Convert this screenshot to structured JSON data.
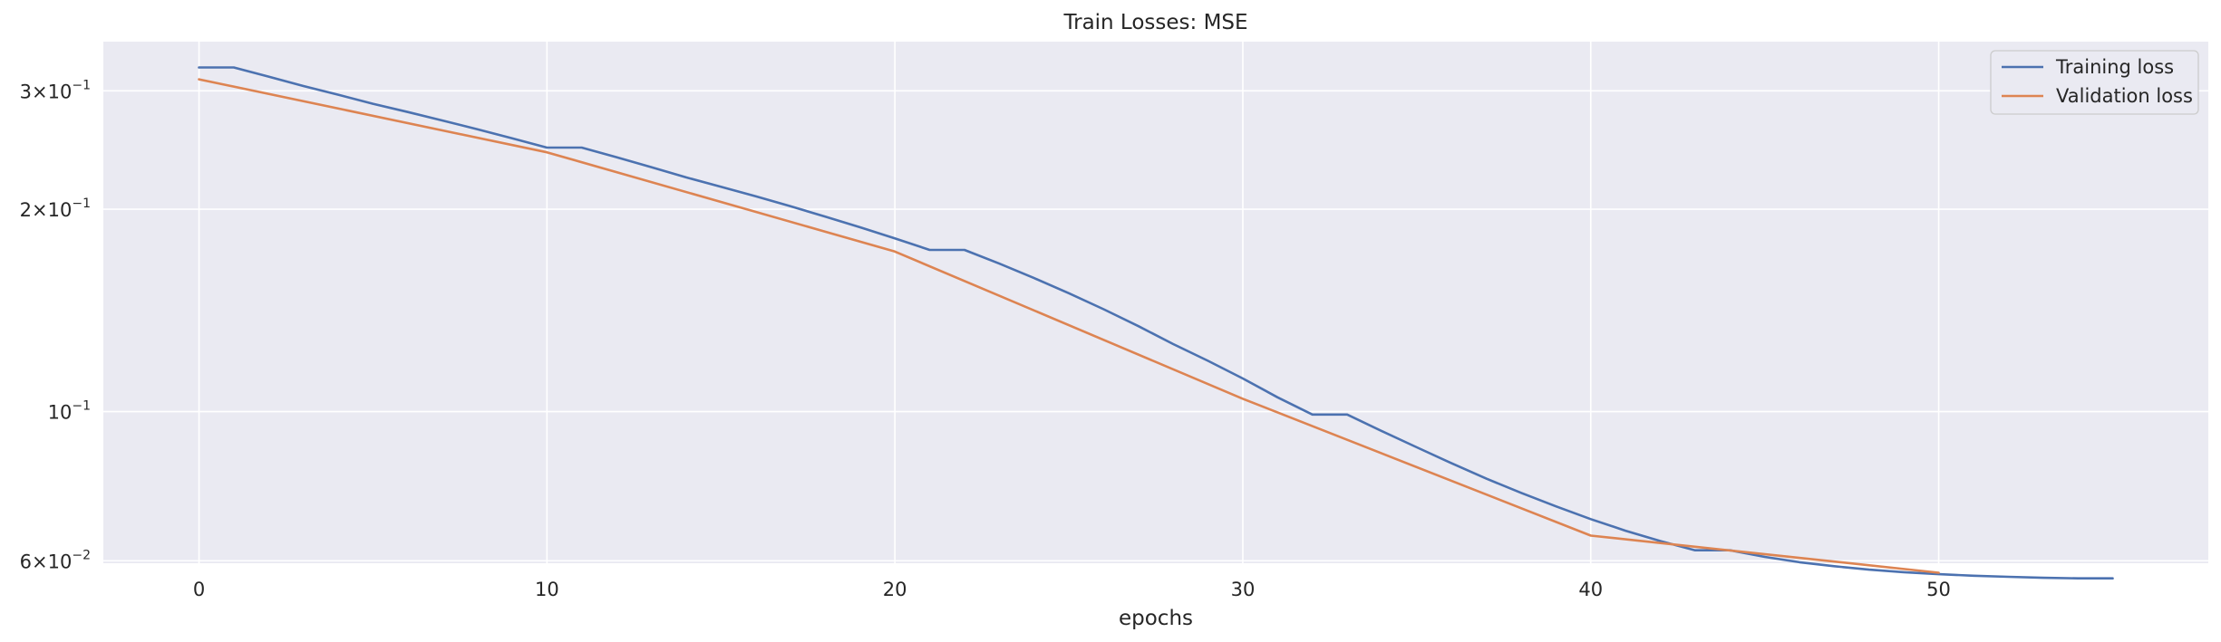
{
  "chart_data": {
    "type": "line",
    "title": "Train Losses:  MSE",
    "xlabel": "epochs",
    "ylabel": "",
    "yscale": "log",
    "xlim": [
      -2.75,
      57.75
    ],
    "ylim": [
      0.0595,
      0.355
    ],
    "grid": true,
    "legend_position": "top-right",
    "x_ticks": [
      0,
      10,
      20,
      30,
      40,
      50
    ],
    "x_tick_labels": [
      "0",
      "10",
      "20",
      "30",
      "40",
      "50"
    ],
    "y_ticks": [
      {
        "value": 0.3,
        "mantissa": "3",
        "base": "10",
        "exp": "−1"
      },
      {
        "value": 0.2,
        "mantissa": "2",
        "base": "10",
        "exp": "−1"
      },
      {
        "value": 0.1,
        "mantissa": "",
        "base": "10",
        "exp": "−1"
      },
      {
        "value": 0.06,
        "mantissa": "6",
        "base": "10",
        "exp": "−2"
      }
    ],
    "series": [
      {
        "name": "Training loss",
        "color": "#4c72b0",
        "x": [
          0,
          1,
          2,
          3,
          4,
          5,
          6,
          7,
          8,
          9,
          10,
          11,
          12,
          13,
          14,
          15,
          16,
          17,
          18,
          19,
          20,
          21,
          22,
          23,
          24,
          25,
          26,
          27,
          28,
          29,
          30,
          31,
          32,
          33,
          34,
          35,
          36,
          37,
          38,
          39,
          40,
          41,
          42,
          43,
          44,
          45,
          46,
          47,
          48,
          49,
          50,
          51,
          52,
          53,
          54,
          55
        ],
        "values": [
          0.325,
          0.325,
          0.315,
          0.305,
          0.296,
          0.287,
          0.279,
          0.271,
          0.263,
          0.255,
          0.247,
          0.247,
          0.239,
          0.231,
          0.223,
          0.216,
          0.209,
          0.202,
          0.195,
          0.188,
          0.181,
          0.174,
          0.174,
          0.166,
          0.158,
          0.15,
          0.142,
          0.134,
          0.126,
          0.119,
          0.112,
          0.105,
          0.099,
          0.099,
          0.0935,
          0.0885,
          0.0838,
          0.0795,
          0.0757,
          0.0723,
          0.0692,
          0.0665,
          0.0642,
          0.0622,
          0.0622,
          0.0608,
          0.0597,
          0.0589,
          0.0582,
          0.0577,
          0.0573,
          0.057,
          0.0568,
          0.0566,
          0.0565,
          0.0565
        ]
      },
      {
        "name": "Validation loss",
        "color": "#dd8452",
        "x": [
          0,
          10,
          20,
          30,
          40,
          50
        ],
        "values": [
          0.312,
          0.243,
          0.173,
          0.1045,
          0.0654,
          0.0576
        ]
      }
    ]
  }
}
